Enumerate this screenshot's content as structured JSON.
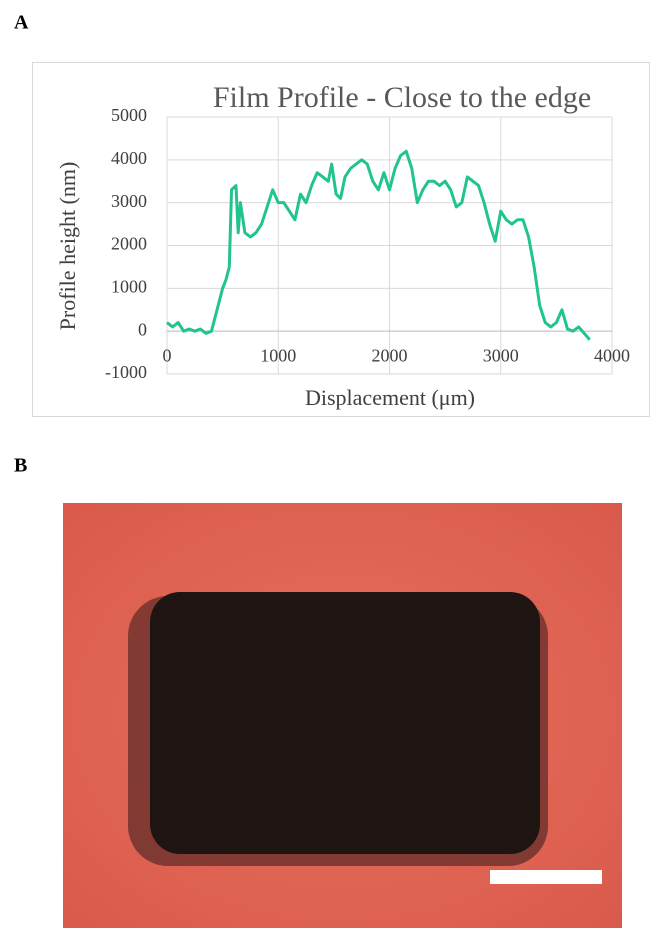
{
  "panel_labels": [
    "A",
    "B"
  ],
  "chart_data": {
    "type": "line",
    "title": "Film Profile - Close to the edge",
    "x_label": "Displacement (μm)",
    "y_label": "Profile height (nm)",
    "x": [
      0,
      50,
      100,
      150,
      200,
      250,
      300,
      350,
      400,
      450,
      500,
      530,
      560,
      580,
      620,
      640,
      660,
      700,
      750,
      800,
      850,
      900,
      950,
      1000,
      1050,
      1100,
      1150,
      1200,
      1250,
      1300,
      1350,
      1400,
      1450,
      1480,
      1520,
      1560,
      1600,
      1650,
      1700,
      1750,
      1800,
      1850,
      1900,
      1950,
      2000,
      2050,
      2100,
      2150,
      2200,
      2250,
      2300,
      2350,
      2400,
      2450,
      2500,
      2550,
      2600,
      2650,
      2700,
      2750,
      2800,
      2850,
      2900,
      2950,
      3000,
      3050,
      3100,
      3150,
      3200,
      3250,
      3300,
      3350,
      3400,
      3450,
      3500,
      3550,
      3600,
      3650,
      3700,
      3750,
      3800
    ],
    "values": [
      200,
      100,
      200,
      0,
      50,
      0,
      50,
      -50,
      0,
      500,
      1000,
      1200,
      1500,
      3300,
      3400,
      2300,
      3000,
      2300,
      2200,
      2300,
      2500,
      2900,
      3300,
      3000,
      3000,
      2800,
      2600,
      3200,
      3000,
      3400,
      3700,
      3600,
      3500,
      3900,
      3200,
      3100,
      3600,
      3800,
      3900,
      4000,
      3900,
      3500,
      3300,
      3700,
      3300,
      3800,
      4100,
      4200,
      3800,
      3000,
      3300,
      3500,
      3500,
      3400,
      3500,
      3300,
      2900,
      3000,
      3600,
      3500,
      3400,
      3000,
      2500,
      2100,
      2800,
      2600,
      2500,
      2600,
      2600,
      2200,
      1500,
      600,
      200,
      100,
      200,
      500,
      50,
      0,
      100,
      -50,
      -200
    ],
    "color": "#21c48f",
    "xlim": [
      0,
      4000
    ],
    "xticks": [
      0,
      1000,
      2000,
      3000,
      4000
    ],
    "ylim": [
      -1000,
      5000
    ],
    "yticks": [
      -1000,
      0,
      1000,
      2000,
      3000,
      4000,
      5000
    ],
    "grid": true
  }
}
